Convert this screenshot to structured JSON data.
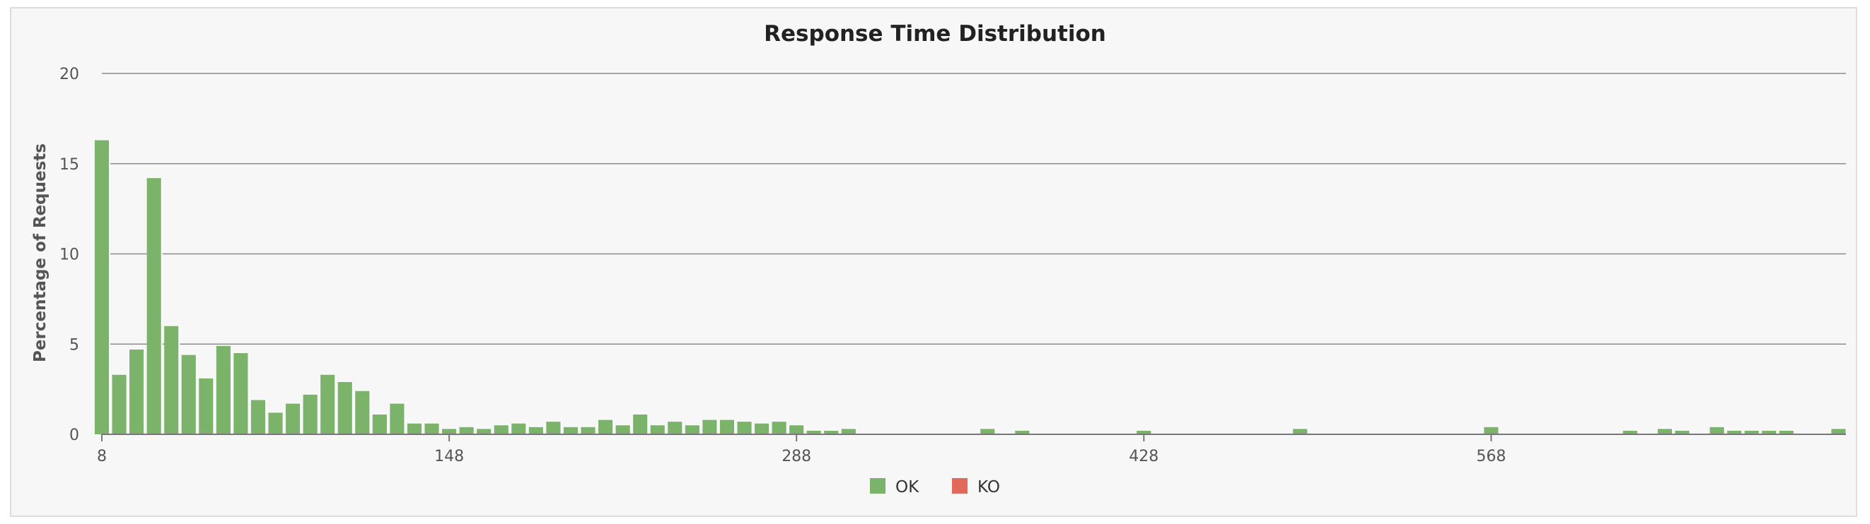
{
  "chart_data": {
    "type": "bar",
    "title": "Response Time Distribution",
    "xlabel": "",
    "ylabel": "Percentage of Requests",
    "ylim": [
      0,
      20
    ],
    "yticks": [
      0,
      5,
      10,
      15,
      20
    ],
    "x_ticks": [
      8,
      148,
      288,
      428,
      568
    ],
    "grid": true,
    "legend_position": "bottom-center",
    "series": [
      {
        "name": "OK",
        "color": "#7cb36b",
        "x": [
          8,
          15,
          22,
          29,
          36,
          43,
          50,
          57,
          64,
          71,
          78,
          85,
          92,
          99,
          106,
          113,
          120,
          127,
          134,
          141,
          148,
          155,
          162,
          169,
          176,
          183,
          190,
          197,
          204,
          211,
          218,
          225,
          232,
          239,
          246,
          253,
          260,
          267,
          274,
          281,
          288,
          295,
          302,
          309,
          365,
          379,
          428,
          491,
          568,
          624,
          638,
          645,
          659,
          666,
          673,
          680,
          687,
          708
        ],
        "values": [
          16.3,
          3.3,
          4.7,
          14.2,
          6.0,
          4.4,
          3.1,
          4.9,
          4.5,
          1.9,
          1.2,
          1.7,
          2.2,
          3.3,
          2.9,
          2.4,
          1.1,
          1.7,
          0.6,
          0.6,
          0.3,
          0.4,
          0.3,
          0.5,
          0.6,
          0.4,
          0.7,
          0.4,
          0.4,
          0.8,
          0.5,
          1.1,
          0.5,
          0.7,
          0.5,
          0.8,
          0.8,
          0.7,
          0.6,
          0.7,
          0.5,
          0.2,
          0.2,
          0.3,
          0.3,
          0.2,
          0.2,
          0.3,
          0.4,
          0.2,
          0.3,
          0.2,
          0.4,
          0.2,
          0.2,
          0.2,
          0.2,
          0.3
        ]
      },
      {
        "name": "KO",
        "color": "#e0695c",
        "x": [],
        "values": []
      }
    ]
  }
}
